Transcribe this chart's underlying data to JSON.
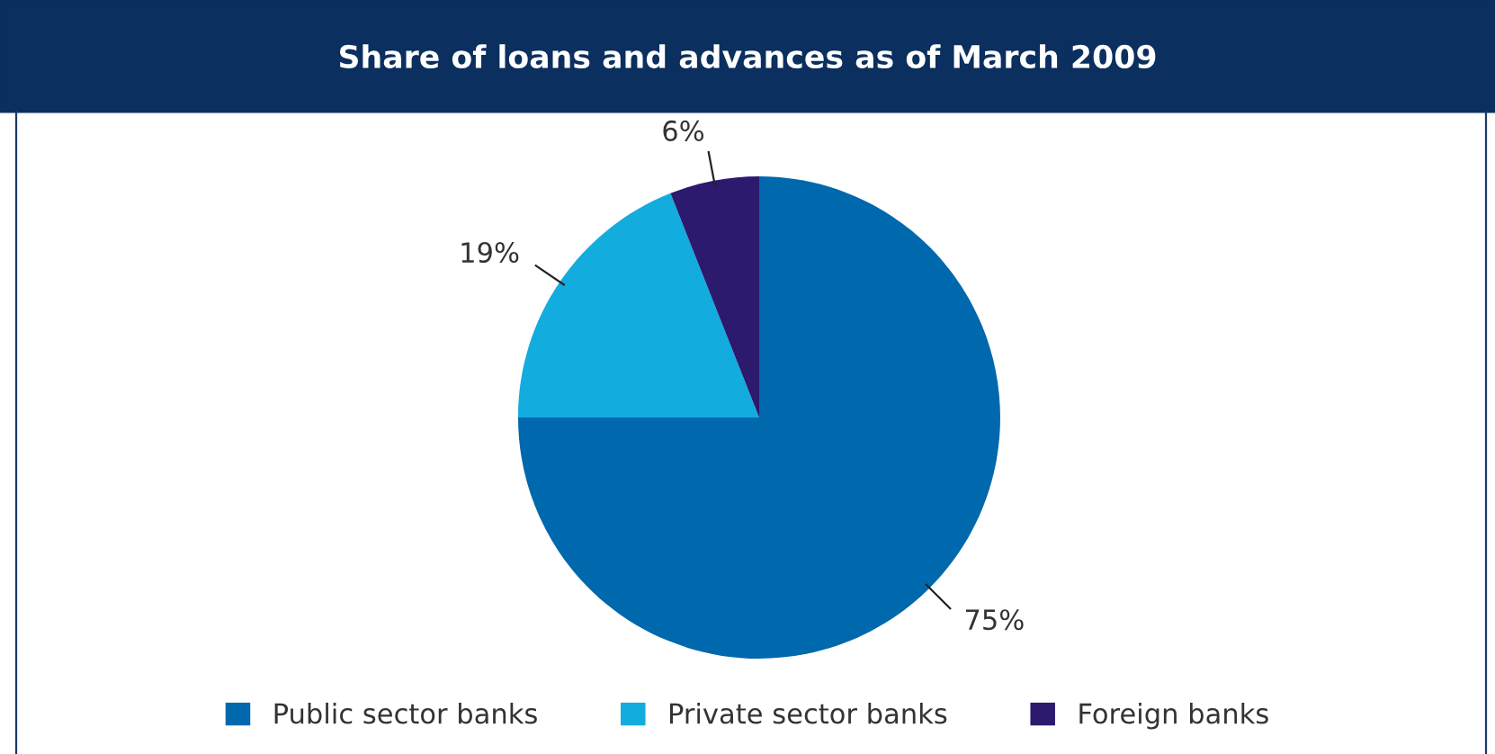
{
  "chart_data": {
    "type": "pie",
    "title": "Share of loans and advances as of March 2009",
    "categories": [
      "Public sector banks",
      "Private sector banks",
      "Foreign banks"
    ],
    "values": [
      75,
      19,
      6
    ],
    "colors": [
      "#0068ad",
      "#12acdf",
      "#2b1a6e"
    ],
    "value_labels": [
      "75%",
      "19%",
      "6%"
    ],
    "legend": "bottom"
  }
}
